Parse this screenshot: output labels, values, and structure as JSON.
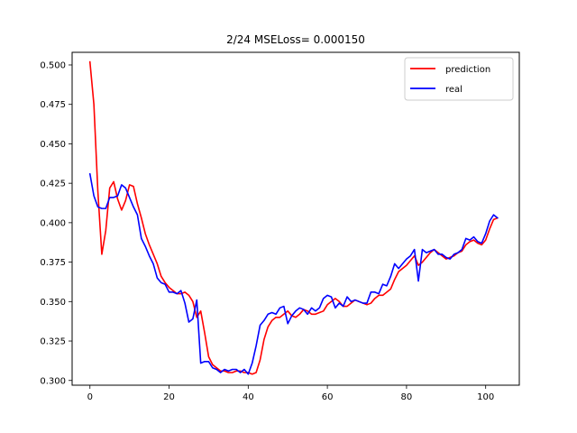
{
  "chart_data": {
    "type": "line",
    "title": "2/24 MSELoss= 0.000150",
    "xlabel": "",
    "ylabel": "",
    "xlim": [
      -4.5,
      108.5
    ],
    "ylim": [
      0.297,
      0.508
    ],
    "xticks": [
      0,
      20,
      40,
      60,
      80,
      100
    ],
    "xtick_labels": [
      "0",
      "20",
      "40",
      "60",
      "80",
      "100"
    ],
    "yticks": [
      0.3,
      0.325,
      0.35,
      0.375,
      0.4,
      0.425,
      0.45,
      0.475,
      0.5
    ],
    "ytick_labels": [
      "0.300",
      "0.325",
      "0.350",
      "0.375",
      "0.400",
      "0.425",
      "0.450",
      "0.475",
      "0.500"
    ],
    "legend_position": "top-right",
    "series": [
      {
        "name": "prediction",
        "color": "#ff0000",
        "x": [
          0,
          1,
          2,
          3,
          4,
          5,
          6,
          7,
          8,
          9,
          10,
          11,
          12,
          13,
          14,
          15,
          16,
          17,
          18,
          19,
          20,
          21,
          22,
          23,
          24,
          25,
          26,
          27,
          28,
          29,
          30,
          31,
          32,
          33,
          34,
          35,
          36,
          37,
          38,
          39,
          40,
          41,
          42,
          43,
          44,
          45,
          46,
          47,
          48,
          49,
          50,
          51,
          52,
          53,
          54,
          55,
          56,
          57,
          58,
          59,
          60,
          61,
          62,
          63,
          64,
          65,
          66,
          67,
          68,
          69,
          70,
          71,
          72,
          73,
          74,
          75,
          76,
          77,
          78,
          79,
          80,
          81,
          82,
          83,
          84,
          85,
          86,
          87,
          88,
          89,
          90,
          91,
          92,
          93,
          94,
          95,
          96,
          97,
          98,
          99,
          100,
          101,
          102,
          103
        ],
        "values": [
          0.502,
          0.475,
          0.42,
          0.38,
          0.395,
          0.422,
          0.426,
          0.415,
          0.408,
          0.414,
          0.424,
          0.423,
          0.412,
          0.403,
          0.393,
          0.386,
          0.38,
          0.374,
          0.366,
          0.362,
          0.359,
          0.357,
          0.355,
          0.355,
          0.356,
          0.354,
          0.35,
          0.34,
          0.344,
          0.33,
          0.315,
          0.31,
          0.308,
          0.306,
          0.306,
          0.305,
          0.305,
          0.306,
          0.306,
          0.305,
          0.305,
          0.304,
          0.305,
          0.313,
          0.326,
          0.334,
          0.338,
          0.34,
          0.34,
          0.342,
          0.344,
          0.341,
          0.34,
          0.342,
          0.345,
          0.344,
          0.342,
          0.342,
          0.343,
          0.344,
          0.348,
          0.35,
          0.352,
          0.35,
          0.347,
          0.347,
          0.349,
          0.351,
          0.35,
          0.349,
          0.348,
          0.349,
          0.352,
          0.354,
          0.354,
          0.356,
          0.358,
          0.364,
          0.369,
          0.371,
          0.373,
          0.376,
          0.379,
          0.373,
          0.375,
          0.378,
          0.381,
          0.383,
          0.381,
          0.379,
          0.377,
          0.378,
          0.379,
          0.381,
          0.382,
          0.386,
          0.388,
          0.389,
          0.387,
          0.386,
          0.389,
          0.396,
          0.402,
          0.403
        ]
      },
      {
        "name": "real",
        "color": "#0000ff",
        "x": [
          0,
          1,
          2,
          3,
          4,
          5,
          6,
          7,
          8,
          9,
          10,
          11,
          12,
          13,
          14,
          15,
          16,
          17,
          18,
          19,
          20,
          21,
          22,
          23,
          24,
          25,
          26,
          27,
          28,
          29,
          30,
          31,
          32,
          33,
          34,
          35,
          36,
          37,
          38,
          39,
          40,
          41,
          42,
          43,
          44,
          45,
          46,
          47,
          48,
          49,
          50,
          51,
          52,
          53,
          54,
          55,
          56,
          57,
          58,
          59,
          60,
          61,
          62,
          63,
          64,
          65,
          66,
          67,
          68,
          69,
          70,
          71,
          72,
          73,
          74,
          75,
          76,
          77,
          78,
          79,
          80,
          81,
          82,
          83,
          84,
          85,
          86,
          87,
          88,
          89,
          90,
          91,
          92,
          93,
          94,
          95,
          96,
          97,
          98,
          99,
          100,
          101,
          102,
          103
        ],
        "values": [
          0.431,
          0.417,
          0.41,
          0.409,
          0.409,
          0.416,
          0.416,
          0.417,
          0.424,
          0.422,
          0.416,
          0.41,
          0.405,
          0.39,
          0.385,
          0.379,
          0.374,
          0.365,
          0.362,
          0.361,
          0.356,
          0.356,
          0.355,
          0.357,
          0.349,
          0.337,
          0.339,
          0.351,
          0.311,
          0.312,
          0.312,
          0.308,
          0.307,
          0.305,
          0.307,
          0.306,
          0.307,
          0.307,
          0.305,
          0.307,
          0.304,
          0.311,
          0.322,
          0.335,
          0.338,
          0.342,
          0.343,
          0.342,
          0.346,
          0.347,
          0.336,
          0.341,
          0.344,
          0.346,
          0.345,
          0.342,
          0.346,
          0.344,
          0.346,
          0.352,
          0.354,
          0.353,
          0.346,
          0.349,
          0.347,
          0.353,
          0.35,
          0.351,
          0.35,
          0.349,
          0.349,
          0.356,
          0.356,
          0.355,
          0.361,
          0.36,
          0.366,
          0.374,
          0.371,
          0.374,
          0.377,
          0.379,
          0.383,
          0.363,
          0.383,
          0.381,
          0.382,
          0.383,
          0.38,
          0.38,
          0.378,
          0.377,
          0.38,
          0.381,
          0.383,
          0.39,
          0.389,
          0.391,
          0.388,
          0.387,
          0.393,
          0.401,
          0.405,
          0.403
        ]
      }
    ]
  }
}
